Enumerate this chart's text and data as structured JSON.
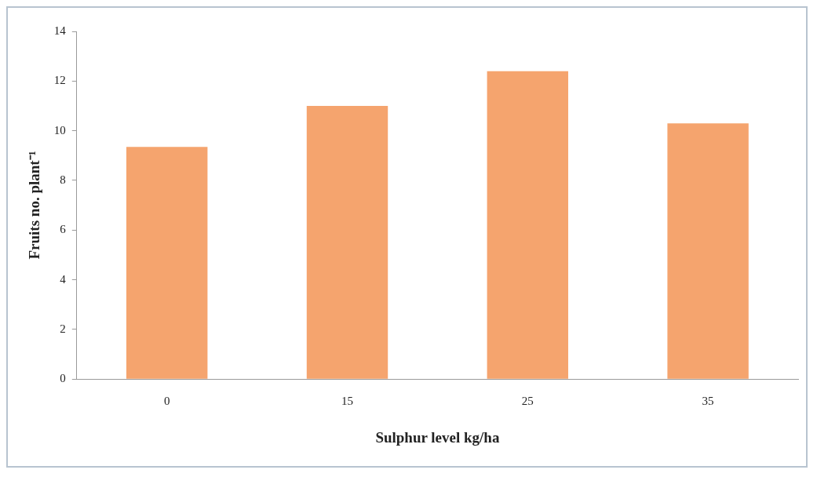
{
  "chart_data": {
    "type": "bar",
    "xlabel": "Sulphur level kg/ha",
    "ylabel": "Fruits no. plant⁻¹",
    "categories": [
      "0",
      "15",
      "25",
      "35"
    ],
    "values": [
      9.35,
      11.0,
      12.4,
      10.3
    ],
    "color": "#f5a46e",
    "ylim": [
      0,
      14
    ],
    "yticks": [
      0,
      2,
      4,
      6,
      8,
      10,
      12,
      14
    ],
    "grid": false,
    "legend": false
  }
}
